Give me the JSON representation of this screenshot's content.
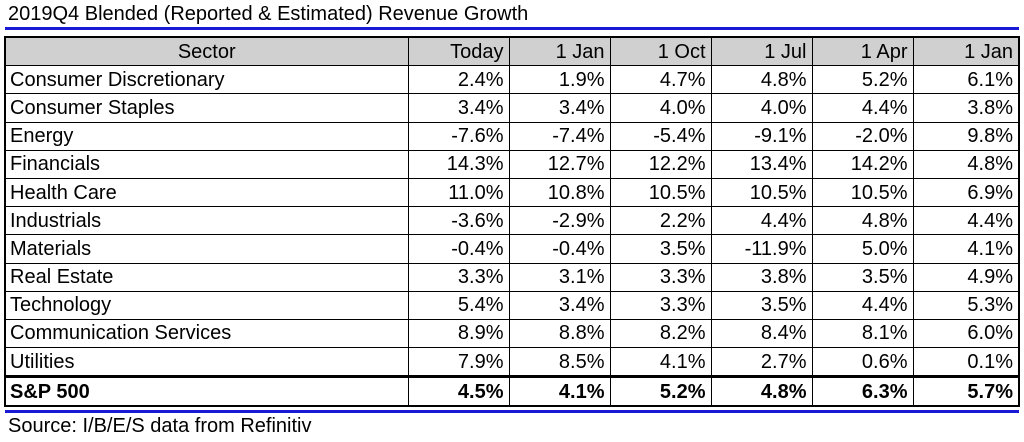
{
  "title": "2019Q4 Blended (Reported & Estimated) Revenue Growth",
  "source": "Source: I/B/E/S data from Refinitiv",
  "colors": {
    "rule": "#1a1ad6",
    "header_bg": "#d0d0d0"
  },
  "chart_data": {
    "type": "table",
    "title": "2019Q4 Blended (Reported & Estimated) Revenue Growth",
    "columns": [
      "Sector",
      "Today",
      "1 Jan",
      "1 Oct",
      "1 Jul",
      "1 Apr",
      "1 Jan"
    ],
    "rows": [
      [
        "Consumer Discretionary",
        "2.4%",
        "1.9%",
        "4.7%",
        "4.8%",
        "5.2%",
        "6.1%"
      ],
      [
        "Consumer Staples",
        "3.4%",
        "3.4%",
        "4.0%",
        "4.0%",
        "4.4%",
        "3.8%"
      ],
      [
        "Energy",
        "-7.6%",
        "-7.4%",
        "-5.4%",
        "-9.1%",
        "-2.0%",
        "9.8%"
      ],
      [
        "Financials",
        "14.3%",
        "12.7%",
        "12.2%",
        "13.4%",
        "14.2%",
        "4.8%"
      ],
      [
        "Health Care",
        "11.0%",
        "10.8%",
        "10.5%",
        "10.5%",
        "10.5%",
        "6.9%"
      ],
      [
        "Industrials",
        "-3.6%",
        "-2.9%",
        "2.2%",
        "4.4%",
        "4.8%",
        "4.4%"
      ],
      [
        "Materials",
        "-0.4%",
        "-0.4%",
        "3.5%",
        "-11.9%",
        "5.0%",
        "4.1%"
      ],
      [
        "Real Estate",
        "3.3%",
        "3.1%",
        "3.3%",
        "3.8%",
        "3.5%",
        "4.9%"
      ],
      [
        "Technology",
        "5.4%",
        "3.4%",
        "3.3%",
        "3.5%",
        "4.4%",
        "5.3%"
      ],
      [
        "Communication Services",
        "8.9%",
        "8.8%",
        "8.2%",
        "8.4%",
        "8.1%",
        "6.0%"
      ],
      [
        "Utilities",
        "7.9%",
        "8.5%",
        "4.1%",
        "2.7%",
        "0.6%",
        "0.1%"
      ]
    ],
    "total_row": [
      "S&P 500",
      "4.5%",
      "4.1%",
      "5.2%",
      "4.8%",
      "6.3%",
      "5.7%"
    ]
  }
}
